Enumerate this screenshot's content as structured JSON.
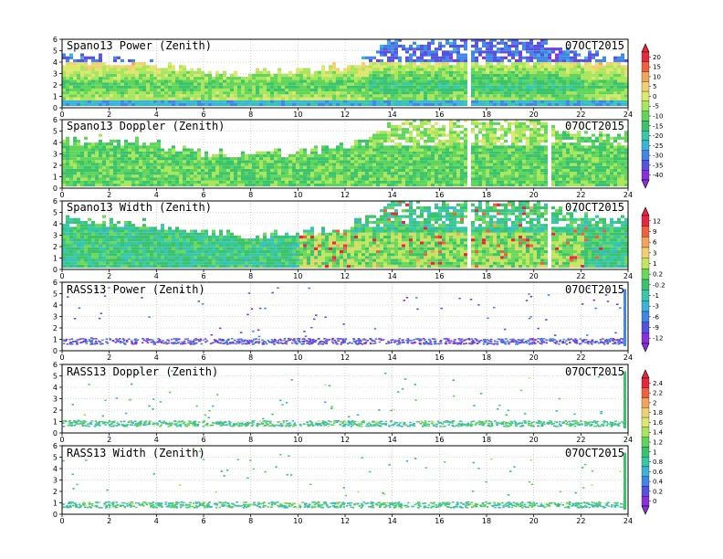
{
  "chart_data": [
    {
      "type": "heatmap",
      "title": "Spano13 Power (Zenith)",
      "date": "07OCT2015",
      "xlim": [
        0,
        24
      ],
      "ylim": [
        0,
        6
      ],
      "xticks": [
        0,
        2,
        4,
        6,
        8,
        10,
        12,
        14,
        16,
        18,
        20,
        22,
        24
      ],
      "yticks": [
        0,
        1,
        2,
        3,
        4,
        5,
        6
      ],
      "variable": "power",
      "top_profile": [
        {
          "x": 0,
          "h": 4.4
        },
        {
          "x": 3,
          "h": 4.0
        },
        {
          "x": 6,
          "h": 3.0
        },
        {
          "x": 8,
          "h": 2.9
        },
        {
          "x": 10,
          "h": 3.0
        },
        {
          "x": 12,
          "h": 3.6
        },
        {
          "x": 13,
          "h": 4.5
        },
        {
          "x": 14,
          "h": 5.8
        },
        {
          "x": 16,
          "h": 5.6
        },
        {
          "x": 18,
          "h": 6.0
        },
        {
          "x": 20,
          "h": 5.9
        },
        {
          "x": 22,
          "h": 4.6
        },
        {
          "x": 24,
          "h": 4.4
        }
      ]
    },
    {
      "type": "heatmap",
      "title": "Spano13 Doppler (Zenith)",
      "date": "07OCT2015",
      "xlim": [
        0,
        24
      ],
      "ylim": [
        0,
        6
      ],
      "xticks": [
        0,
        2,
        4,
        6,
        8,
        10,
        12,
        14,
        16,
        18,
        20,
        22,
        24
      ],
      "yticks": [
        0,
        1,
        2,
        3,
        4,
        5,
        6
      ],
      "variable": "doppler",
      "top_profile": [
        {
          "x": 0,
          "h": 4.4
        },
        {
          "x": 3,
          "h": 4.0
        },
        {
          "x": 6,
          "h": 3.0
        },
        {
          "x": 8,
          "h": 2.9
        },
        {
          "x": 10,
          "h": 3.0
        },
        {
          "x": 12,
          "h": 3.6
        },
        {
          "x": 13,
          "h": 4.5
        },
        {
          "x": 14,
          "h": 5.8
        },
        {
          "x": 16,
          "h": 5.6
        },
        {
          "x": 18,
          "h": 6.0
        },
        {
          "x": 20,
          "h": 5.9
        },
        {
          "x": 22,
          "h": 4.6
        },
        {
          "x": 24,
          "h": 4.4
        }
      ]
    },
    {
      "type": "heatmap",
      "title": "Spano13 Width (Zenith)",
      "date": "07OCT2015",
      "xlim": [
        0,
        24
      ],
      "ylim": [
        0,
        6
      ],
      "xticks": [
        0,
        2,
        4,
        6,
        8,
        10,
        12,
        14,
        16,
        18,
        20,
        22,
        24
      ],
      "yticks": [
        0,
        1,
        2,
        3,
        4,
        5,
        6
      ],
      "variable": "width",
      "top_profile": [
        {
          "x": 0,
          "h": 4.4
        },
        {
          "x": 3,
          "h": 4.0
        },
        {
          "x": 6,
          "h": 3.0
        },
        {
          "x": 8,
          "h": 2.9
        },
        {
          "x": 10,
          "h": 3.0
        },
        {
          "x": 12,
          "h": 3.6
        },
        {
          "x": 13,
          "h": 4.5
        },
        {
          "x": 14,
          "h": 5.8
        },
        {
          "x": 16,
          "h": 5.6
        },
        {
          "x": 18,
          "h": 6.0
        },
        {
          "x": 20,
          "h": 5.9
        },
        {
          "x": 22,
          "h": 4.6
        },
        {
          "x": 24,
          "h": 4.4
        }
      ]
    },
    {
      "type": "scatter",
      "title": "RASS13 Power (Zenith)",
      "date": "07OCT2015",
      "xlim": [
        0,
        24
      ],
      "ylim": [
        0,
        6
      ],
      "xticks": [
        0,
        2,
        4,
        6,
        8,
        10,
        12,
        14,
        16,
        18,
        20,
        22,
        24
      ],
      "yticks": [
        0,
        1,
        2,
        3,
        4,
        5,
        6
      ],
      "variable": "rasspower"
    },
    {
      "type": "scatter",
      "title": "RASS13 Doppler (Zenith)",
      "date": "07OCT2015",
      "xlim": [
        0,
        24
      ],
      "ylim": [
        0,
        6
      ],
      "xticks": [
        0,
        2,
        4,
        6,
        8,
        10,
        12,
        14,
        16,
        18,
        20,
        22,
        24
      ],
      "yticks": [
        0,
        1,
        2,
        3,
        4,
        5,
        6
      ],
      "variable": "rassdoppler"
    },
    {
      "type": "scatter",
      "title": "RASS13 Width (Zenith)",
      "date": "07OCT2015",
      "xlim": [
        0,
        24
      ],
      "ylim": [
        0,
        6
      ],
      "xticks": [
        0,
        2,
        4,
        6,
        8,
        10,
        12,
        14,
        16,
        18,
        20,
        22,
        24
      ],
      "yticks": [
        0,
        1,
        2,
        3,
        4,
        5,
        6
      ],
      "variable": "rasswidth"
    }
  ],
  "colorbars": [
    {
      "labels": [
        "20",
        "15",
        "10",
        "5",
        "0",
        "-5",
        "-10",
        "-15",
        "-20",
        "-25",
        "-30",
        "-35",
        "-40"
      ],
      "colors": [
        "#e8263c",
        "#f0603c",
        "#f3a35a",
        "#f0d070",
        "#dce86e",
        "#a8e65a",
        "#5fd65a",
        "#39c46c",
        "#36c8a8",
        "#3ab4d8",
        "#3f86e6",
        "#5652e0",
        "#8a2fe0"
      ]
    },
    {
      "labels": [
        "12",
        "9",
        "6",
        "3",
        "1",
        "0.2",
        "-0.2",
        "-1",
        "-3",
        "-6",
        "-9",
        "-12"
      ],
      "colors": [
        "#e8263c",
        "#f0603c",
        "#f3a35a",
        "#f0d070",
        "#c2e65e",
        "#6ad95a",
        "#39c46c",
        "#36c8a8",
        "#3ab4d8",
        "#3f86e6",
        "#5652e0",
        "#8a2fe0"
      ]
    },
    {
      "labels": [
        "2.4",
        "2.2",
        "2",
        "1.8",
        "1.6",
        "1.4",
        "1.2",
        "1",
        "0.8",
        "0.6",
        "0.4",
        "0.2",
        "0"
      ],
      "colors": [
        "#e8263c",
        "#f0603c",
        "#f3a35a",
        "#f0d070",
        "#dce86e",
        "#a8e65a",
        "#5fd65a",
        "#39c46c",
        "#36c8a8",
        "#3ab4d8",
        "#3f86e6",
        "#5652e0",
        "#8a2fe0"
      ]
    }
  ]
}
